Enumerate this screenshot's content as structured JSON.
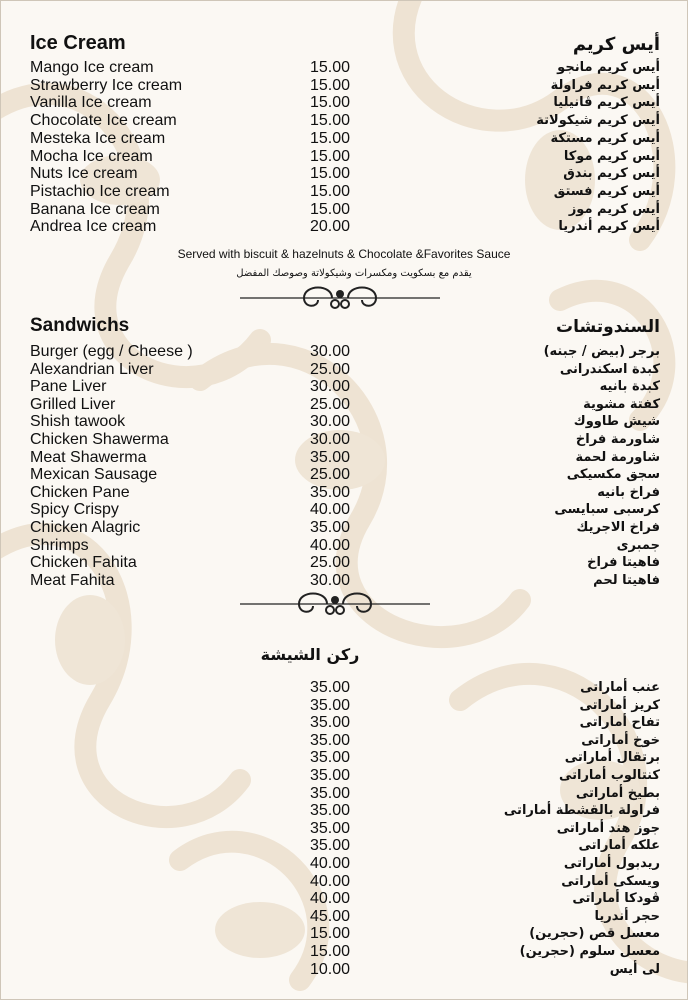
{
  "colors": {
    "background": "#fbf8f3",
    "pattern": "#eee3d3",
    "text": "#111111"
  },
  "ice_cream": {
    "title_en": "Ice Cream",
    "title_ar": "أيس كريم",
    "items": [
      {
        "en": "Mango Ice cream",
        "price": "15.00",
        "ar": "أيس كريم مانجو"
      },
      {
        "en": "Strawberry Ice cream",
        "price": "15.00",
        "ar": "أيس كريم فراولة"
      },
      {
        "en": "Vanilla Ice cream",
        "price": "15.00",
        "ar": "أيس كريم ڤانيليا"
      },
      {
        "en": "Chocolate Ice cream",
        "price": "15.00",
        "ar": "أيس كريم شيكولاتة"
      },
      {
        "en": "Mesteka Ice cream",
        "price": "15.00",
        "ar": "أيس كريم مستكة"
      },
      {
        "en": "Mocha Ice cream",
        "price": "15.00",
        "ar": "أيس كريم موكا"
      },
      {
        "en": "Nuts Ice cream",
        "price": "15.00",
        "ar": "أيس كريم بندق"
      },
      {
        "en": "Pistachio Ice cream",
        "price": "15.00",
        "ar": "أيس كريم فستق"
      },
      {
        "en": "Banana Ice cream",
        "price": "15.00",
        "ar": "أيس كريم موز"
      },
      {
        "en": "Andrea Ice cream",
        "price": "20.00",
        "ar": "أيس كريم أندريا"
      }
    ],
    "note_en": "Served with biscuit & hazelnuts & Chocolate &Favorites Sauce",
    "note_ar": "يقدم مع بسكويت ومكسرات وشيكولاتة وصوصك المفضل"
  },
  "sandwiches": {
    "title_en": "Sandwichs",
    "title_ar": "السندوتشات",
    "items": [
      {
        "en": "Burger (egg / Cheese )",
        "price": "30.00",
        "ar": "برجر (بيض / جبنه)"
      },
      {
        "en": "Alexandrian Liver",
        "price": "25.00",
        "ar": "كبدة اسكندرانى"
      },
      {
        "en": "Pane Liver",
        "price": "30.00",
        "ar": "كبدة بانيه"
      },
      {
        "en": "Grilled Liver",
        "price": "25.00",
        "ar": "كفتة مشوية"
      },
      {
        "en": "Shish tawook",
        "price": "30.00",
        "ar": "شيش طاووك"
      },
      {
        "en": "Chicken Shawerma",
        "price": "30.00",
        "ar": "شاورمة فراخ"
      },
      {
        "en": "Meat Shawerma",
        "price": "35.00",
        "ar": "شاورمة لحمة"
      },
      {
        "en": "Mexican Sausage",
        "price": "25.00",
        "ar": "سجق مكسيكى"
      },
      {
        "en": "Chicken Pane",
        "price": "35.00",
        "ar": "فراخ بانيه"
      },
      {
        "en": "Spicy Crispy",
        "price": "40.00",
        "ar": "كرسبى سبايسى"
      },
      {
        "en": "Chicken Alagric",
        "price": "35.00",
        "ar": "فراخ الاجريك"
      },
      {
        "en": "Shrimps",
        "price": "40.00",
        "ar": "جمبرى"
      },
      {
        "en": "Chicken Fahita",
        "price": "25.00",
        "ar": "فاهيتا فراخ"
      },
      {
        "en": "Meat Fahita",
        "price": "30.00",
        "ar": "فاهيتا لحم"
      }
    ]
  },
  "shisha": {
    "title_ar": "ركن الشيشة",
    "items": [
      {
        "en": "",
        "price": "35.00",
        "ar": "عنب أماراتى"
      },
      {
        "en": "",
        "price": "35.00",
        "ar": "كريز أماراتى"
      },
      {
        "en": "",
        "price": "35.00",
        "ar": "تفاح أماراتى"
      },
      {
        "en": "",
        "price": "35.00",
        "ar": "خوخ أماراتى"
      },
      {
        "en": "",
        "price": "35.00",
        "ar": "برتقال أماراتى"
      },
      {
        "en": "",
        "price": "35.00",
        "ar": "كنتالوب أماراتى"
      },
      {
        "en": "",
        "price": "35.00",
        "ar": "بطيخ أماراتى"
      },
      {
        "en": "",
        "price": "35.00",
        "ar": "فراولة بالقشطة أماراتى"
      },
      {
        "en": "",
        "price": "35.00",
        "ar": "جوز هند أماراتى"
      },
      {
        "en": "",
        "price": "35.00",
        "ar": "علكه أماراتى"
      },
      {
        "en": "",
        "price": "40.00",
        "ar": "ريدبول أماراتى"
      },
      {
        "en": "",
        "price": "40.00",
        "ar": "ويسكى أماراتى"
      },
      {
        "en": "",
        "price": "40.00",
        "ar": "ڤودكا أماراتى"
      },
      {
        "en": "",
        "price": "45.00",
        "ar": "حجر أندريا"
      },
      {
        "en": "",
        "price": "15.00",
        "ar": "معسل قص (حجرين)"
      },
      {
        "en": "",
        "price": "15.00",
        "ar": "معسل سلوم (حجرين)"
      },
      {
        "en": "",
        "price": "10.00",
        "ar": "لى أيس"
      }
    ]
  }
}
